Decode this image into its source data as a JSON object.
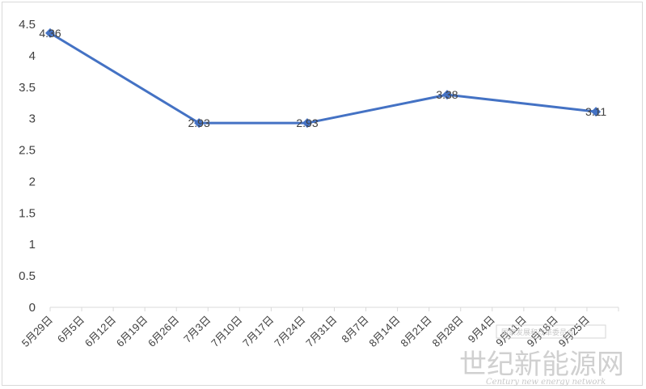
{
  "chart_data": {
    "type": "line",
    "title": "",
    "xlabel": "",
    "ylabel": "",
    "ylim": [
      0,
      4.5
    ],
    "y_ticks": [
      "0",
      "0.5",
      "1",
      "1.5",
      "2",
      "2.5",
      "3",
      "3.5",
      "4",
      "4.5"
    ],
    "x_ticks": [
      "5月29日",
      "6月5日",
      "6月12日",
      "6月19日",
      "6月26日",
      "7月3日",
      "7月10日",
      "7月17日",
      "7月24日",
      "7月31日",
      "8月7日",
      "8月14日",
      "8月21日",
      "8月28日",
      "9月4日",
      "9月11日",
      "9月18日",
      "9月25日"
    ],
    "grid": false,
    "legend": "none",
    "series_color": "#4472c4",
    "series": [
      {
        "x": [
          "5月29日",
          "7月1日",
          "7月25日",
          "8月25日",
          "9月27日"
        ],
        "values": [
          4.36,
          2.93,
          2.93,
          3.38,
          3.11
        ],
        "labels": [
          "4.36",
          "2.93",
          "2.93",
          "3.38",
          "3.11"
        ]
      }
    ]
  },
  "watermark": {
    "main": "世纪新能源网",
    "english": "Century new energy network",
    "top_line": "国家发展和改革委员会"
  }
}
